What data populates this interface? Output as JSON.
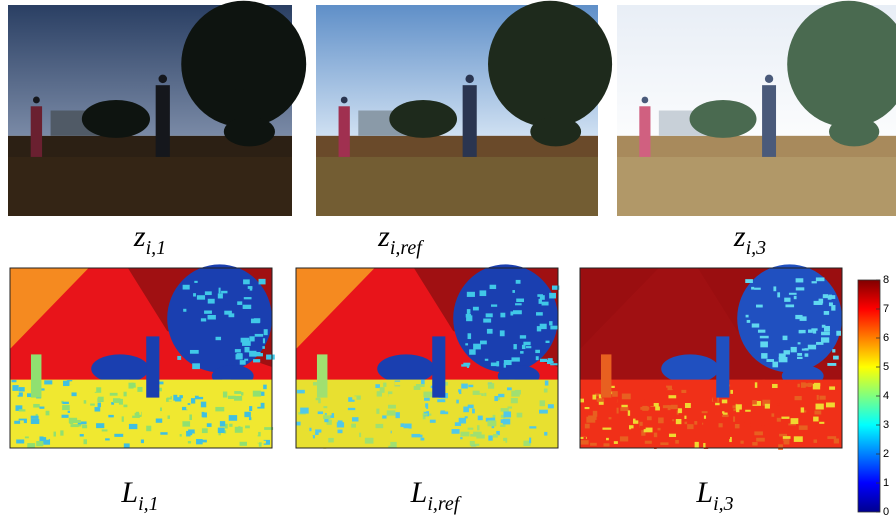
{
  "panels": [
    {
      "symbol": "z",
      "subscript": "i,1"
    },
    {
      "symbol": "z",
      "subscript": "i,ref"
    },
    {
      "symbol": "z",
      "subscript": "i,3"
    },
    {
      "symbol": "L",
      "subscript": "i,1"
    },
    {
      "symbol": "L",
      "subscript": "i,ref"
    },
    {
      "symbol": "L",
      "subscript": "i,3"
    }
  ],
  "colorbar": {
    "lim": [
      0,
      8
    ],
    "ticks": [
      0,
      1,
      2,
      3,
      4,
      5,
      6,
      7,
      8
    ]
  }
}
